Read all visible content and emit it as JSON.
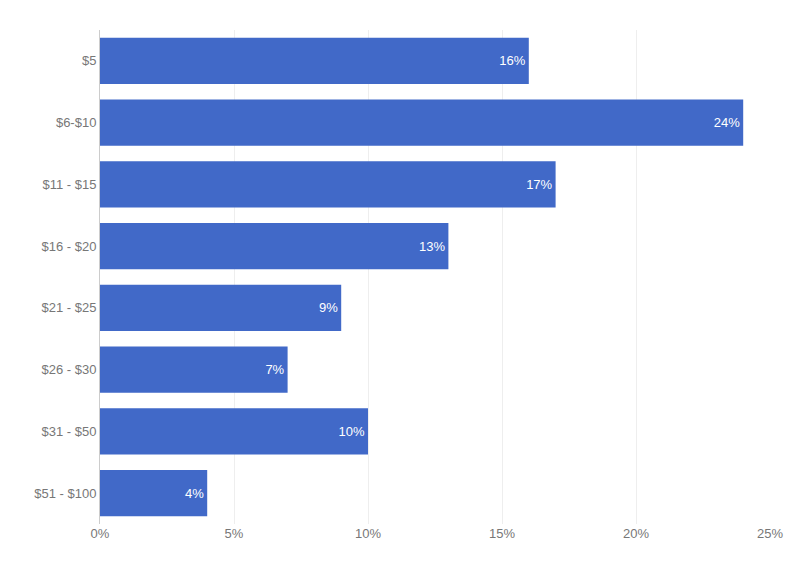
{
  "chart_data": {
    "type": "bar",
    "orientation": "horizontal",
    "categories": [
      "$5",
      "$6-$10",
      "$11 - $15",
      "$16 - $20",
      "$21 - $25",
      "$26 - $30",
      "$31 - $50",
      "$51 - $100"
    ],
    "values": [
      16,
      24,
      17,
      13,
      9,
      7,
      10,
      4
    ],
    "value_labels": [
      "16%",
      "24%",
      "17%",
      "13%",
      "9%",
      "7%",
      "10%",
      "4%"
    ],
    "data_labels": true,
    "color": "#4169c8",
    "xlim": [
      0,
      25
    ],
    "xticks": [
      {
        "value": 0,
        "label": "0%"
      },
      {
        "value": 5,
        "label": "5%"
      },
      {
        "value": 10,
        "label": "10%"
      },
      {
        "value": 15,
        "label": "15%"
      },
      {
        "value": 20,
        "label": "20%"
      },
      {
        "value": 25,
        "label": "25%"
      }
    ],
    "grid": true
  }
}
